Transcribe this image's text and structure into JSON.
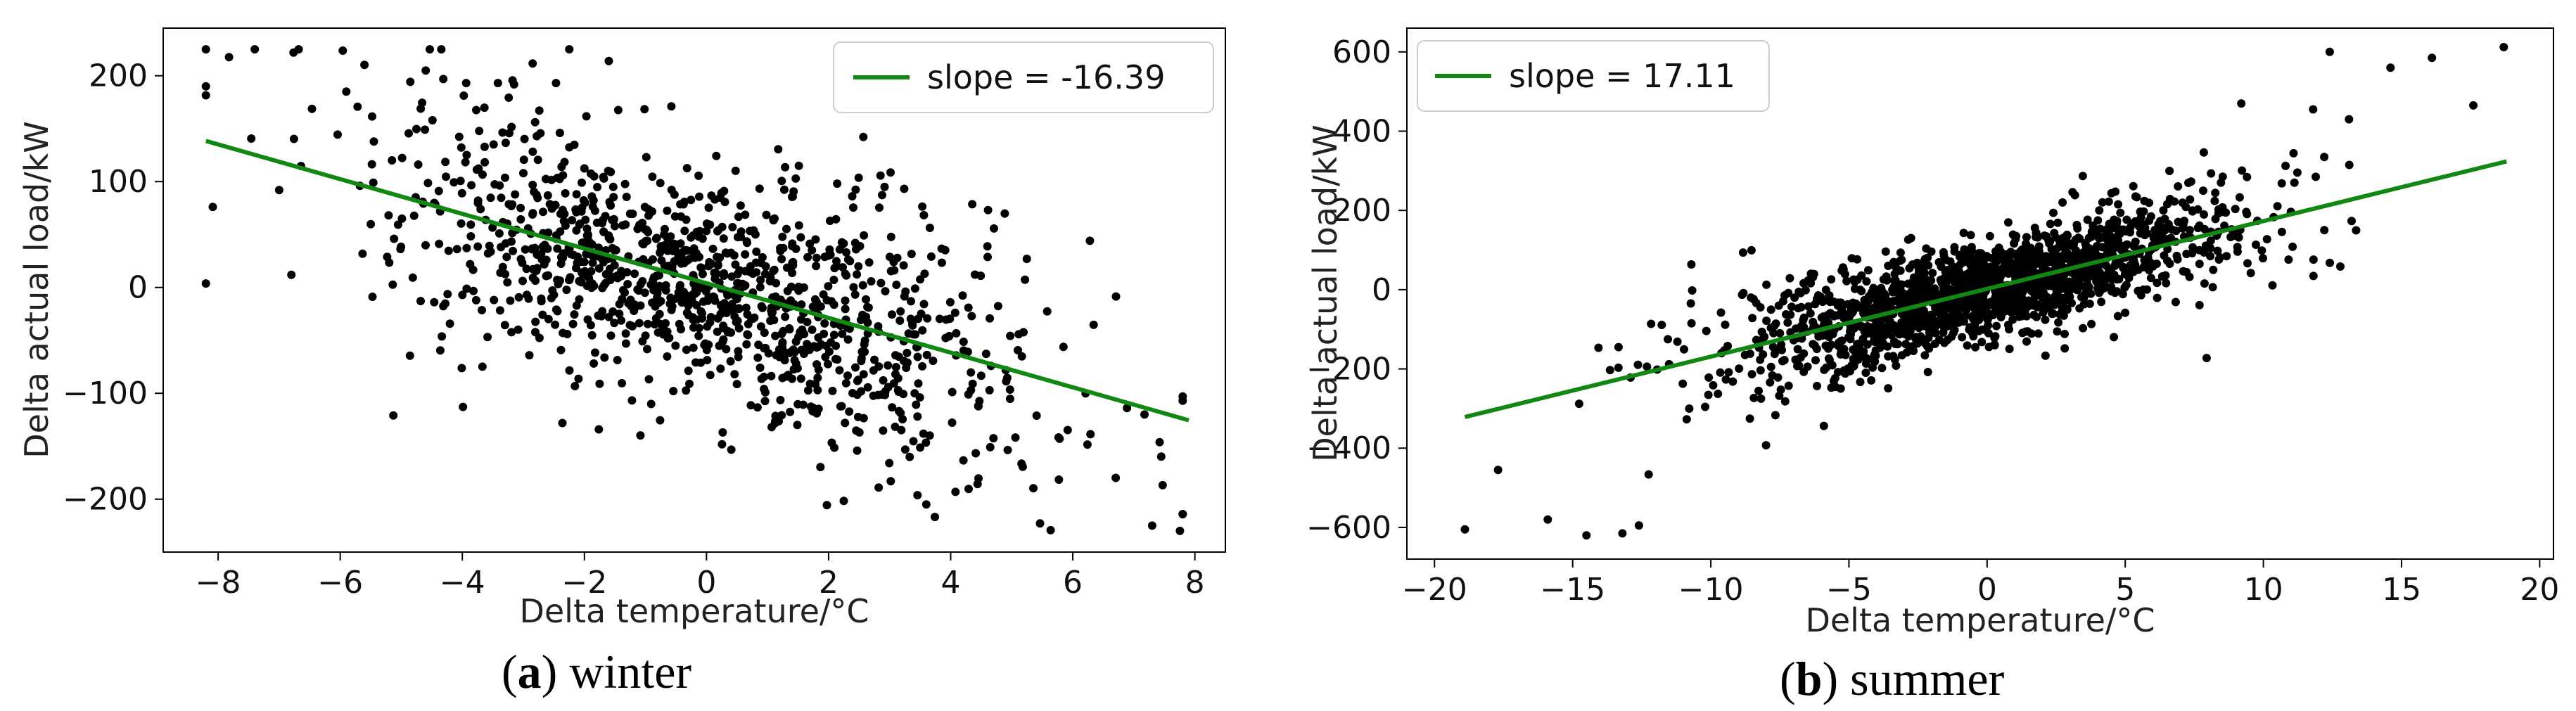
{
  "chart_data": [
    {
      "type": "scatter",
      "panel": "a",
      "caption_label": "a",
      "caption_text": "winter",
      "xlabel": "Delta temperature/°C",
      "ylabel": "Delta actual load/kW",
      "xlim": [
        -8.9,
        8.5
      ],
      "ylim": [
        -250,
        245
      ],
      "xticks": [
        -8,
        -6,
        -4,
        -2,
        0,
        2,
        4,
        6,
        8
      ],
      "yticks": [
        -200,
        -100,
        0,
        100,
        200
      ],
      "xtick_labels": [
        "−8",
        "−6",
        "−4",
        "−2",
        "0",
        "2",
        "4",
        "6",
        "8"
      ],
      "ytick_labels": [
        "−200",
        "−100",
        "0",
        "100",
        "200"
      ],
      "legend_position": "top-right",
      "legend_label": "slope = -16.39",
      "fit_line": {
        "slope": -16.39,
        "intercept": 4,
        "x_range": [
          -8.2,
          7.9
        ],
        "color": "#118811"
      },
      "point_color": "#000000",
      "scatter": {
        "n": 1200,
        "x_mean": 0,
        "x_std": 2.6,
        "x_range": [
          -8.2,
          7.8
        ],
        "y_std": 45,
        "y_range": [
          -230,
          225
        ],
        "seed": 7
      },
      "outliers": [
        [
          -8.2,
          190
        ],
        [
          -7.4,
          225
        ],
        [
          -7.0,
          92
        ],
        [
          -1.6,
          214
        ],
        [
          -4.6,
          205
        ],
        [
          7.3,
          -225
        ],
        [
          3.6,
          -205
        ],
        [
          -6.8,
          12
        ],
        [
          7.8,
          -103
        ],
        [
          -5.9,
          185
        ]
      ]
    },
    {
      "type": "scatter",
      "panel": "b",
      "caption_label": "b",
      "caption_text": "summer",
      "xlabel": "Delta temperature/°C",
      "ylabel": "Delta actual load/kW",
      "xlim": [
        -21,
        20.5
      ],
      "ylim": [
        -680,
        660
      ],
      "xticks": [
        -20,
        -15,
        -10,
        -5,
        0,
        5,
        10,
        15,
        20
      ],
      "yticks": [
        -600,
        -400,
        -200,
        0,
        200,
        400,
        600
      ],
      "xtick_labels": [
        "−20",
        "−15",
        "−10",
        "−5",
        "0",
        "5",
        "10",
        "15",
        "20"
      ],
      "ytick_labels": [
        "−600",
        "−400",
        "−200",
        "0",
        "200",
        "400",
        "600"
      ],
      "legend_position": "top-left",
      "legend_label": "slope = 17.11",
      "fit_line": {
        "slope": 17.11,
        "intercept": 2,
        "x_range": [
          -18.9,
          18.8
        ],
        "color": "#118811"
      },
      "point_color": "#000000",
      "scatter": {
        "n": 1700,
        "x_mean": 0,
        "x_std": 4.6,
        "x_range": [
          -18.9,
          18.9
        ],
        "y_std": 55,
        "y_range": [
          -620,
          615
        ],
        "seed": 13
      },
      "outliers": [
        [
          -18.9,
          -605
        ],
        [
          -14.5,
          -620
        ],
        [
          -13.2,
          -615
        ],
        [
          -12.6,
          -595
        ],
        [
          -15.9,
          -580
        ],
        [
          -17.7,
          -455
        ],
        [
          18.7,
          612
        ],
        [
          12.4,
          600
        ],
        [
          16.1,
          585
        ],
        [
          14.6,
          560
        ],
        [
          9.2,
          470
        ],
        [
          11.8,
          455
        ],
        [
          17.6,
          465
        ],
        [
          13.1,
          430
        ]
      ]
    }
  ]
}
